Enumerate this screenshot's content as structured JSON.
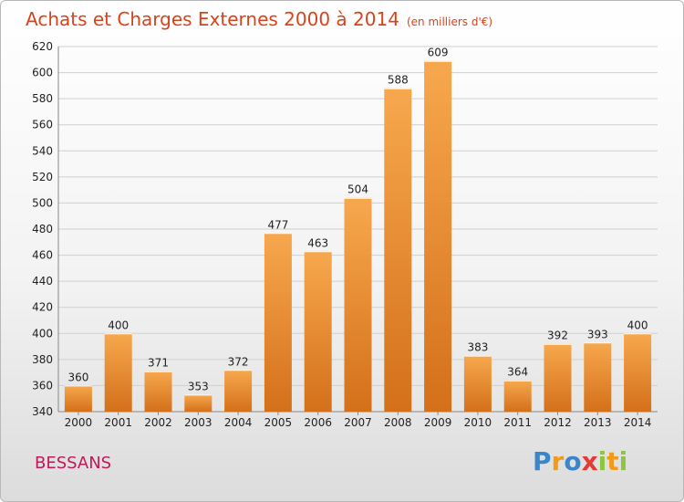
{
  "header": {
    "title": "Achats et Charges Externes 2000 à 2014",
    "subtitle": "(en milliers d'€)"
  },
  "footer": {
    "commune": "BESSANS",
    "logo": {
      "p": "P",
      "r": "r",
      "o": "o",
      "x": "x",
      "i1": "i",
      "t": "t",
      "i2": "i"
    }
  },
  "colors": {
    "bar_light": "#f7a84e",
    "bar_dark": "#d4701a",
    "title": "#d9431c",
    "commune": "#c2185b"
  },
  "chart_data": {
    "type": "bar",
    "title": "Achats et Charges Externes 2000 à 2014",
    "categories": [
      "2000",
      "2001",
      "2002",
      "2003",
      "2004",
      "2005",
      "2006",
      "2007",
      "2008",
      "2009",
      "2010",
      "2011",
      "2012",
      "2013",
      "2014"
    ],
    "values": [
      360,
      400,
      371,
      353,
      372,
      477,
      463,
      504,
      588,
      609,
      383,
      364,
      392,
      393,
      400
    ],
    "ylim": [
      340,
      620
    ],
    "yticks": [
      340,
      360,
      380,
      400,
      420,
      440,
      460,
      480,
      500,
      520,
      540,
      560,
      580,
      600,
      620
    ],
    "grid": true
  }
}
